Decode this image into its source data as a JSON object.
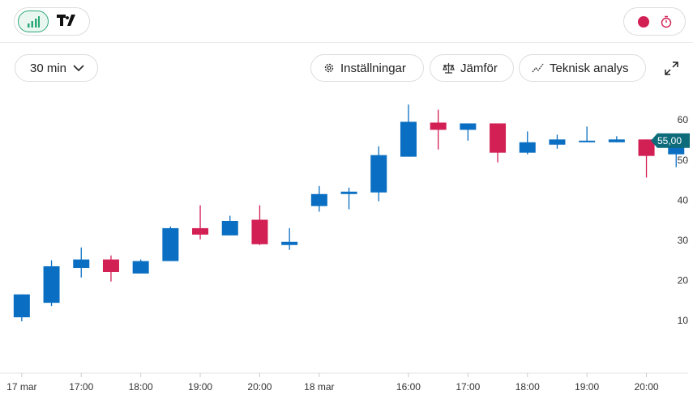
{
  "toolbar": {
    "interval": "30 min",
    "buttons": [
      "Inställningar",
      "Jämför",
      "Teknisk analys"
    ]
  },
  "chart_data": {
    "type": "candlestick",
    "categories": [
      "17 mar",
      null,
      "17:00",
      null,
      "18:00",
      null,
      "19:00",
      null,
      "20:00",
      null,
      "18 mar",
      null,
      null,
      "16:00",
      null,
      "17:00",
      null,
      "18:00",
      null,
      "19:00",
      null,
      "20:00",
      null
    ],
    "open": [
      11,
      14.6,
      23.3,
      25.4,
      21.9,
      25,
      33.2,
      31.4,
      35.3,
      29,
      38.7,
      41.7,
      42.1,
      51,
      59.5,
      57.7,
      59.3,
      52,
      54,
      54.6,
      54.6,
      55.3,
      51.6
    ],
    "high": [
      16.7,
      25.2,
      28.4,
      26.4,
      25.4,
      33.6,
      38.9,
      36.3,
      38.9,
      33.2,
      43.7,
      43.3,
      53.6,
      64,
      62.7,
      59.3,
      59.3,
      57.3,
      56.5,
      58.5,
      56.1,
      55.3,
      55.3
    ],
    "low": [
      10,
      13.8,
      20.9,
      19.9,
      21.9,
      25,
      30.4,
      31.4,
      29,
      27.8,
      37.3,
      37.9,
      39.9,
      51,
      52.8,
      55,
      49.6,
      51.6,
      53,
      54.6,
      54.6,
      45.8,
      48.4
    ],
    "close": [
      16.7,
      23.7,
      25.4,
      22.3,
      25,
      33.2,
      31.6,
      35,
      29.2,
      29.8,
      41.7,
      42.3,
      51.4,
      59.7,
      57.7,
      59.3,
      52,
      54.6,
      55.3,
      55,
      55.3,
      51.2,
      55
    ],
    "up_color": "#0a6fc2",
    "down_color": "#d21f54",
    "ylim": [
      -2,
      70
    ],
    "yticks": [
      10,
      20,
      30,
      40,
      50,
      60
    ],
    "last_price": {
      "value": 55,
      "label": "55,00",
      "color": "#0d6b7a"
    }
  }
}
